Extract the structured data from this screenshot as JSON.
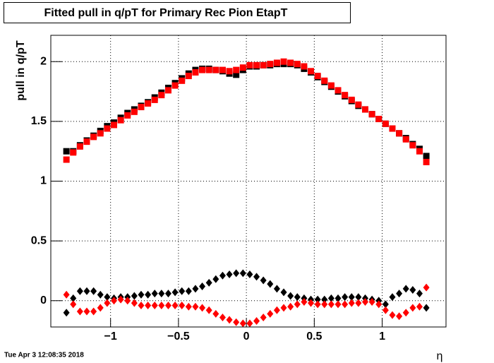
{
  "chart_data": {
    "type": "scatter",
    "title": "Fitted pull in q/pT for Primary Rec Pion EtapT",
    "y_label": "pull in q/pT",
    "x_label": "η",
    "timestamp": "Tue Apr  3 12:08:35 2018",
    "xlim": [
      -1.44,
      1.47
    ],
    "ylim": [
      -0.22,
      2.22
    ],
    "xticks": [
      {
        "value": -1,
        "label": "−1"
      },
      {
        "value": -0.5,
        "label": "−0.5"
      },
      0,
      0.5,
      1
    ],
    "yticks": [
      0,
      0.5,
      1,
      1.5,
      2
    ],
    "grid": true,
    "x": [
      -1.325,
      -1.275,
      -1.225,
      -1.175,
      -1.125,
      -1.075,
      -1.025,
      -0.975,
      -0.925,
      -0.875,
      -0.825,
      -0.775,
      -0.725,
      -0.675,
      -0.625,
      -0.575,
      -0.525,
      -0.475,
      -0.425,
      -0.375,
      -0.325,
      -0.275,
      -0.225,
      -0.175,
      -0.125,
      -0.075,
      -0.025,
      0.025,
      0.075,
      0.125,
      0.175,
      0.225,
      0.275,
      0.325,
      0.375,
      0.425,
      0.475,
      0.525,
      0.575,
      0.625,
      0.675,
      0.725,
      0.775,
      0.825,
      0.875,
      0.925,
      0.975,
      1.025,
      1.075,
      1.125,
      1.175,
      1.225,
      1.275,
      1.325
    ],
    "series": [
      {
        "color": "#000000",
        "marker": "square",
        "values": [
          1.25,
          1.25,
          1.3,
          1.34,
          1.38,
          1.42,
          1.46,
          1.49,
          1.53,
          1.57,
          1.6,
          1.63,
          1.66,
          1.7,
          1.74,
          1.78,
          1.82,
          1.86,
          1.9,
          1.93,
          1.94,
          1.94,
          1.93,
          1.92,
          1.9,
          1.89,
          1.93,
          1.96,
          1.96,
          1.97,
          1.97,
          1.98,
          1.98,
          1.98,
          1.97,
          1.94,
          1.91,
          1.87,
          1.83,
          1.79,
          1.75,
          1.71,
          1.67,
          1.63,
          1.6,
          1.56,
          1.52,
          1.48,
          1.44,
          1.4,
          1.36,
          1.31,
          1.27,
          1.21
        ]
      },
      {
        "color": "#ff0000",
        "marker": "square",
        "values": [
          1.18,
          1.24,
          1.29,
          1.33,
          1.37,
          1.4,
          1.44,
          1.47,
          1.51,
          1.55,
          1.58,
          1.62,
          1.65,
          1.68,
          1.72,
          1.76,
          1.8,
          1.84,
          1.88,
          1.91,
          1.93,
          1.93,
          1.93,
          1.93,
          1.92,
          1.93,
          1.95,
          1.97,
          1.97,
          1.97,
          1.98,
          1.99,
          2.0,
          1.99,
          1.98,
          1.96,
          1.92,
          1.88,
          1.84,
          1.8,
          1.76,
          1.72,
          1.68,
          1.64,
          1.6,
          1.56,
          1.52,
          1.48,
          1.44,
          1.4,
          1.35,
          1.3,
          1.25,
          1.16
        ]
      },
      {
        "color": "#000000",
        "marker": "diamond",
        "values": [
          -0.1,
          0.02,
          0.08,
          0.08,
          0.08,
          0.05,
          0.03,
          0.02,
          0.03,
          0.03,
          0.04,
          0.05,
          0.05,
          0.06,
          0.06,
          0.06,
          0.07,
          0.08,
          0.08,
          0.1,
          0.12,
          0.15,
          0.18,
          0.21,
          0.22,
          0.23,
          0.23,
          0.22,
          0.2,
          0.17,
          0.14,
          0.1,
          0.07,
          0.04,
          0.03,
          0.02,
          0.01,
          0.01,
          0.01,
          0.02,
          0.02,
          0.03,
          0.03,
          0.03,
          0.02,
          0.01,
          0.0,
          -0.03,
          0.03,
          0.06,
          0.1,
          0.09,
          0.06,
          -0.06
        ]
      },
      {
        "color": "#ff0000",
        "marker": "diamond",
        "values": [
          0.05,
          -0.03,
          -0.09,
          -0.09,
          -0.09,
          -0.06,
          -0.02,
          0.0,
          0.01,
          0.0,
          -0.02,
          -0.04,
          -0.04,
          -0.04,
          -0.04,
          -0.04,
          -0.04,
          -0.04,
          -0.05,
          -0.05,
          -0.06,
          -0.08,
          -0.11,
          -0.14,
          -0.16,
          -0.18,
          -0.19,
          -0.19,
          -0.17,
          -0.14,
          -0.11,
          -0.08,
          -0.06,
          -0.05,
          -0.03,
          -0.01,
          -0.02,
          -0.03,
          -0.03,
          -0.03,
          -0.03,
          -0.03,
          -0.02,
          -0.02,
          -0.01,
          -0.01,
          -0.03,
          -0.08,
          -0.12,
          -0.13,
          -0.1,
          -0.06,
          -0.05,
          0.11
        ]
      }
    ]
  }
}
